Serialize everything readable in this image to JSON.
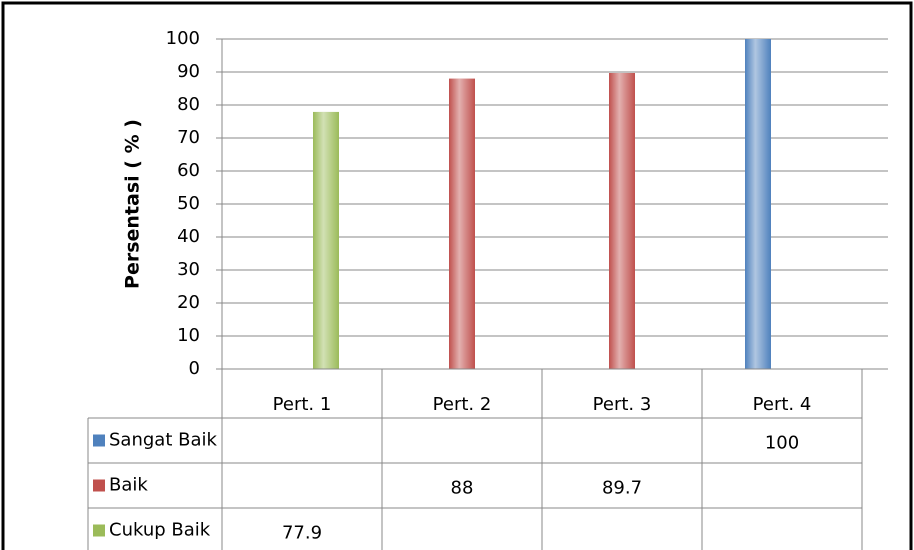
{
  "chart_data": {
    "type": "bar",
    "y_axis_label": "Persentasi ( % )",
    "categories": [
      "Pert. 1",
      "Pert. 2",
      "Pert. 3",
      "Pert. 4"
    ],
    "series": [
      {
        "name": "Sangat Baik",
        "color": "#4f81bd",
        "values": [
          null,
          null,
          null,
          100
        ]
      },
      {
        "name": "Baik",
        "color": "#c0504d",
        "values": [
          null,
          88,
          89.7,
          null
        ]
      },
      {
        "name": "Cukup Baik",
        "color": "#9bbb59",
        "values": [
          77.9,
          null,
          null,
          null
        ]
      }
    ],
    "ylim": [
      0,
      100
    ],
    "yticks": [
      0,
      10,
      20,
      30,
      40,
      50,
      60,
      70,
      80,
      90,
      100
    ],
    "grid": true
  }
}
